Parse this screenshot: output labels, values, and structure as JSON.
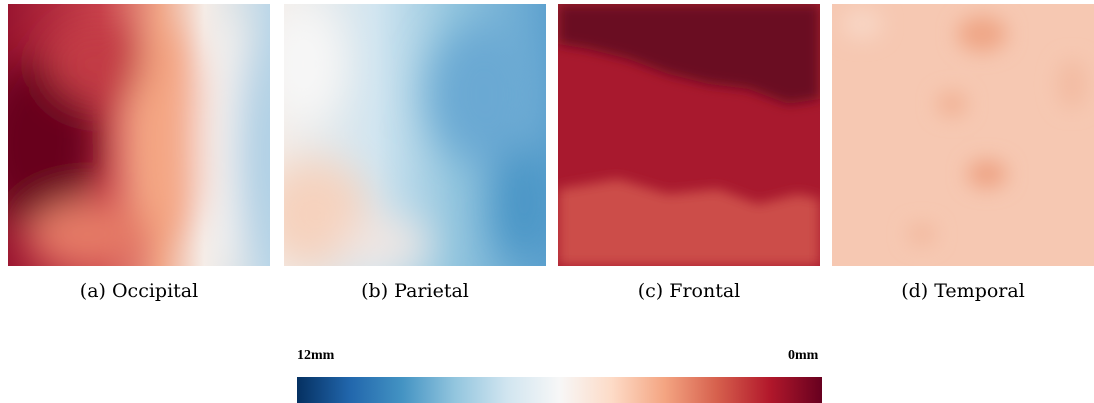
{
  "panels": [
    {
      "id": "a",
      "caption": "(a) Occipital",
      "region": "Occipital"
    },
    {
      "id": "b",
      "caption": "(b) Parietal",
      "region": "Parietal"
    },
    {
      "id": "c",
      "caption": "(c) Frontal",
      "region": "Frontal"
    },
    {
      "id": "d",
      "caption": "(d) Temporal",
      "region": "Temporal"
    }
  ],
  "colorbar": {
    "left_label": "12mm",
    "right_label": "0mm",
    "colormap": "RdBu",
    "colors": [
      "#053061",
      "#2166ac",
      "#4393c3",
      "#92c5de",
      "#d1e5f0",
      "#f7f7f7",
      "#fddbc7",
      "#f4a582",
      "#d6604d",
      "#b2182b",
      "#67001f"
    ]
  },
  "chart_data": [
    {
      "type": "heatmap",
      "caption": "(a) Occipital",
      "value_range": [
        0,
        12
      ],
      "unit": "mm"
    },
    {
      "type": "heatmap",
      "caption": "(b) Parietal",
      "value_range": [
        0,
        12
      ],
      "unit": "mm"
    },
    {
      "type": "heatmap",
      "caption": "(c) Frontal",
      "value_range": [
        0,
        12
      ],
      "unit": "mm"
    },
    {
      "type": "heatmap",
      "caption": "(d) Temporal",
      "value_range": [
        0,
        12
      ],
      "unit": "mm"
    }
  ]
}
